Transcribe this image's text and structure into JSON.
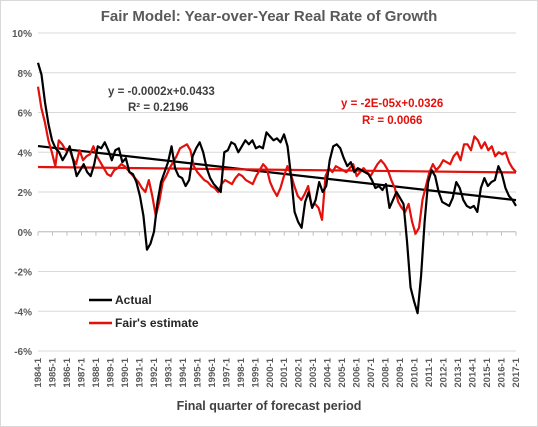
{
  "chart_data": {
    "type": "line",
    "title": "Fair Model: Year-over-Year Real Rate of Growth",
    "xlabel": "Final quarter of forecast period",
    "ylabel": "",
    "ylim": [
      -6,
      10
    ],
    "yticks": [
      -6,
      -4,
      -2,
      0,
      2,
      4,
      6,
      8,
      10
    ],
    "ytick_labels": [
      "-6%",
      "-4%",
      "-2%",
      "0%",
      "2%",
      "4%",
      "6%",
      "8%",
      "10%"
    ],
    "xtick_labels": [
      "1984-1",
      "1985-1",
      "1986-1",
      "1987-1",
      "1988-1",
      "1989-1",
      "1990-1",
      "1991-1",
      "1992-1",
      "1993-1",
      "1994-1",
      "1995-1",
      "1996-1",
      "1997-1",
      "1998-1",
      "1999-1",
      "2000-1",
      "2001-1",
      "2002-1",
      "2003-1",
      "2004-1",
      "2005-1",
      "2006-1",
      "2007-1",
      "2008-1",
      "2009-1",
      "2010-1",
      "2011-1",
      "2012-1",
      "2013-1",
      "2014-1",
      "2015-1",
      "2016-1",
      "2017-1"
    ],
    "x_start": 1984.0,
    "quarters_per_year": 4,
    "grid": "horizontal",
    "legend_position": "bottom-left",
    "series": [
      {
        "name": "Actual",
        "color": "#000000",
        "values": [
          8.5,
          7.9,
          6.5,
          5.4,
          4.6,
          4.2,
          4.0,
          3.6,
          3.9,
          4.3,
          3.6,
          2.8,
          3.1,
          3.4,
          3.0,
          2.8,
          3.4,
          4.3,
          4.2,
          4.5,
          4.1,
          3.6,
          4.1,
          4.2,
          3.5,
          3.7,
          3.0,
          2.9,
          2.5,
          1.8,
          0.8,
          -0.9,
          -0.6,
          0.0,
          1.5,
          2.5,
          3.0,
          3.5,
          4.3,
          3.2,
          2.8,
          2.7,
          2.3,
          2.6,
          3.8,
          4.2,
          4.5,
          4.0,
          3.2,
          2.7,
          2.4,
          2.2,
          2.0,
          4.0,
          4.1,
          4.5,
          4.4,
          4.0,
          4.3,
          4.6,
          4.4,
          4.6,
          4.2,
          4.3,
          4.2,
          5.0,
          4.8,
          4.6,
          4.7,
          4.5,
          4.9,
          4.3,
          2.8,
          1.0,
          0.5,
          0.2,
          1.5,
          2.0,
          1.2,
          1.6,
          2.5,
          2.0,
          2.3,
          3.6,
          4.3,
          4.4,
          4.2,
          3.7,
          3.3,
          3.5,
          3.0,
          3.2,
          3.1,
          3.0,
          2.9,
          2.6,
          2.2,
          2.3,
          2.1,
          2.4,
          1.2,
          1.6,
          2.0,
          1.7,
          1.4,
          -0.5,
          -2.8,
          -3.5,
          -4.1,
          -2.2,
          0.5,
          2.5,
          3.1,
          2.8,
          2.0,
          1.5,
          1.4,
          1.3,
          1.7,
          2.5,
          2.2,
          1.6,
          1.3,
          1.2,
          1.3,
          1.0,
          2.2,
          2.7,
          2.3,
          2.5,
          2.6,
          3.3,
          2.9,
          2.2,
          1.8,
          1.6,
          1.3
        ],
        "trendline": {
          "slope": -0.0002,
          "intercept": 0.0433,
          "r2": 0.2196,
          "equation": "y = -0.0002x+0.0433",
          "r2_label": "R² = 0.2196"
        }
      },
      {
        "name": "Fair's estimate",
        "color": "#e3100b",
        "values": [
          7.3,
          6.2,
          5.5,
          4.6,
          4.0,
          3.3,
          4.6,
          4.4,
          4.1,
          4.2,
          3.7,
          3.4,
          4.1,
          3.6,
          3.8,
          3.9,
          4.3,
          3.8,
          3.5,
          3.2,
          2.9,
          2.8,
          3.1,
          3.2,
          3.4,
          3.3,
          3.1,
          2.9,
          2.7,
          2.5,
          2.2,
          2.0,
          2.6,
          1.8,
          0.8,
          1.5,
          2.5,
          2.8,
          3.2,
          3.5,
          3.8,
          4.2,
          4.3,
          4.4,
          4.1,
          3.3,
          3.0,
          2.8,
          2.6,
          2.5,
          2.3,
          2.2,
          2.0,
          2.4,
          2.6,
          2.5,
          2.4,
          2.7,
          2.9,
          2.8,
          2.6,
          2.5,
          2.4,
          2.8,
          3.1,
          3.4,
          3.2,
          2.5,
          2.1,
          1.8,
          2.2,
          2.8,
          3.3,
          2.9,
          2.3,
          1.8,
          1.6,
          1.9,
          2.3,
          1.3,
          1.4,
          1.2,
          0.6,
          2.8,
          3.2,
          3.0,
          3.3,
          3.2,
          3.1,
          3.0,
          3.2,
          3.4,
          2.8,
          3.0,
          3.2,
          3.0,
          2.8,
          3.1,
          3.4,
          3.6,
          3.4,
          3.1,
          2.6,
          2.2,
          1.5,
          1.2,
          1.0,
          1.4,
          0.5,
          -0.1,
          0.2,
          1.6,
          2.3,
          3.0,
          3.4,
          3.1,
          3.3,
          3.6,
          3.5,
          3.4,
          3.8,
          4.0,
          3.6,
          4.4,
          4.4,
          4.1,
          4.8,
          4.6,
          4.2,
          4.5,
          4.1,
          4.3,
          3.8,
          4.0,
          3.9,
          4.0,
          3.5,
          3.2,
          3.0
        ],
        "trendline": {
          "slope": -2e-05,
          "intercept": 0.0326,
          "r2": 0.0066,
          "equation": "y = -2E-05x+0.0326",
          "r2_label": "R² = 0.0066"
        }
      }
    ]
  }
}
